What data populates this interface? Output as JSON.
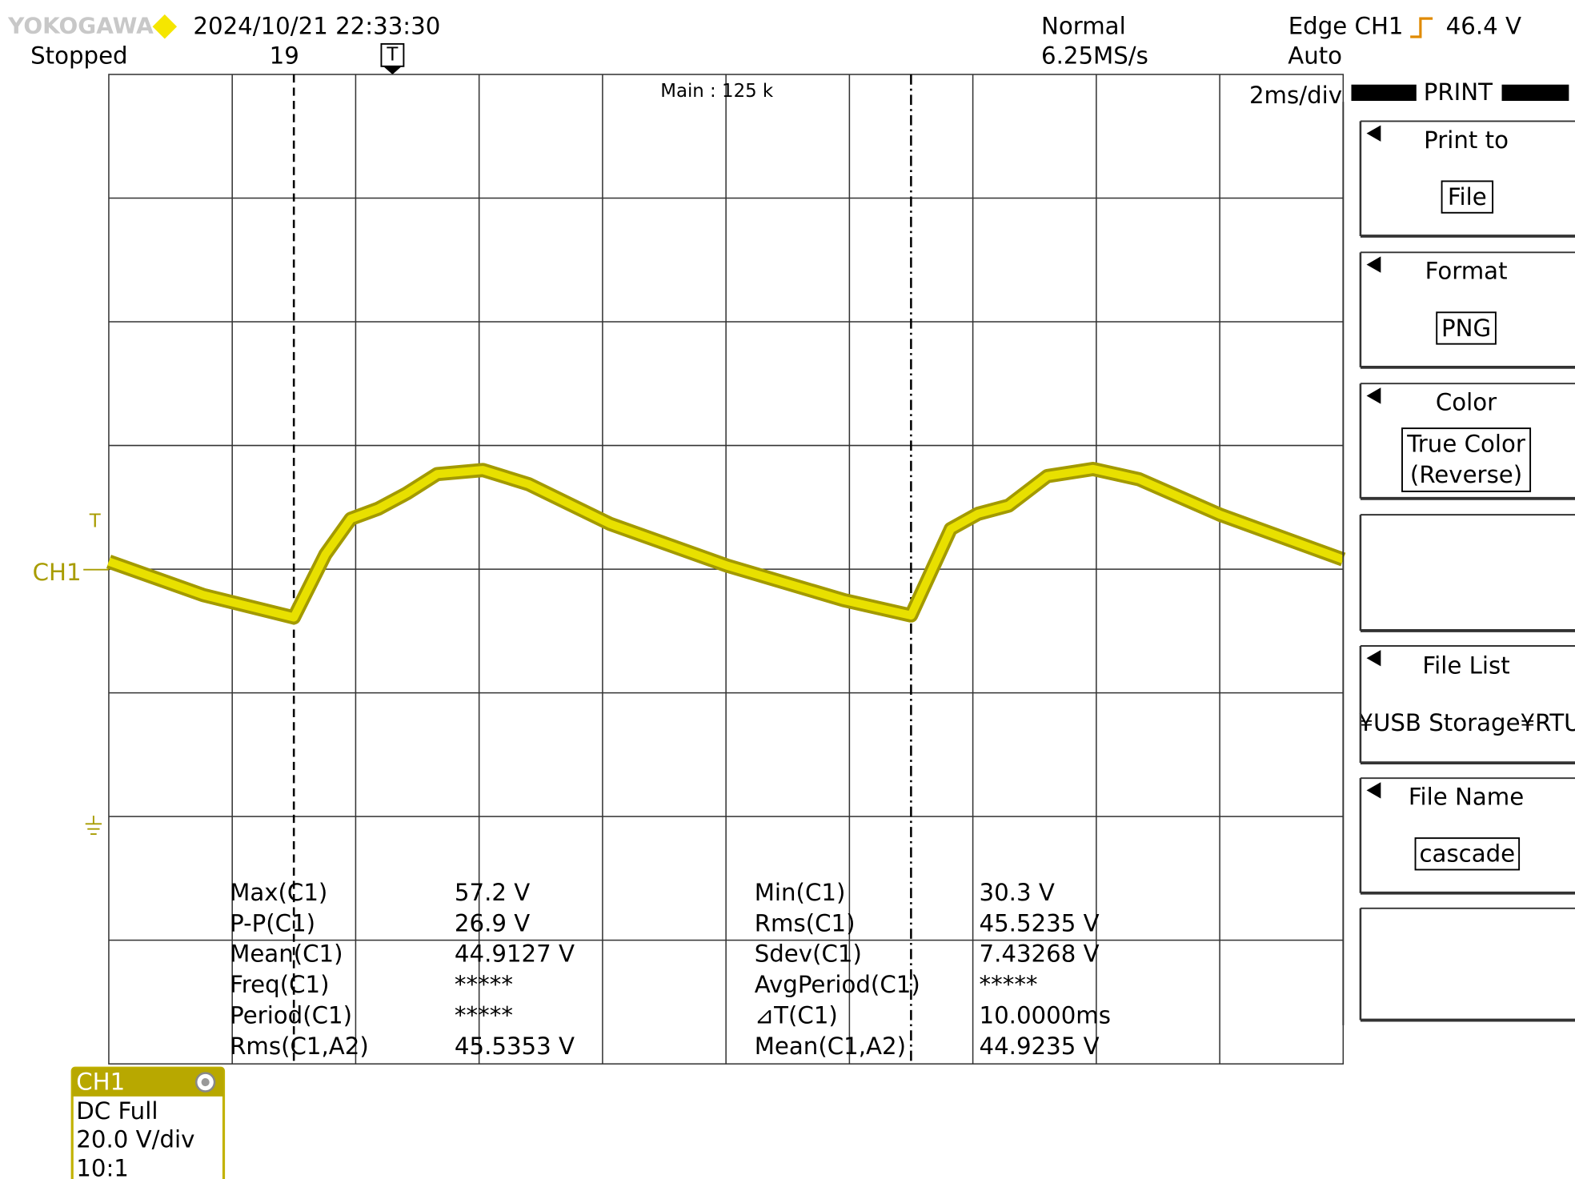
{
  "header": {
    "brand": "YOKOGAWA",
    "datetime": "2024/10/21 22:33:30",
    "status": "Stopped",
    "count": "19",
    "trigger_marker": "T",
    "acq_mode": "Normal",
    "sample_rate": "6.25MS/s",
    "trigger": "Edge CH1",
    "trigger_level": "46.4 V",
    "trigger_mode": "Auto",
    "timebase": "2ms/div",
    "record": "Main : 125 k"
  },
  "channel_label": "CH1",
  "measurements": {
    "left": [
      {
        "label": "Max(C1)",
        "value": "57.2 V"
      },
      {
        "label": "P-P(C1)",
        "value": "26.9 V"
      },
      {
        "label": "Mean(C1)",
        "value": "44.9127 V"
      },
      {
        "label": "Freq(C1)",
        "value": "*****"
      },
      {
        "label": "Period(C1)",
        "value": "*****"
      },
      {
        "label": "Rms(C1,A2)",
        "value": "45.5353 V"
      }
    ],
    "right": [
      {
        "label": "Min(C1)",
        "value": "30.3 V"
      },
      {
        "label": "Rms(C1)",
        "value": "45.5235 V"
      },
      {
        "label": "Sdev(C1)",
        "value": "7.43268 V"
      },
      {
        "label": "AvgPeriod(C1)",
        "value": "*****"
      },
      {
        "label": "⊿T(C1)",
        "value": "10.0000ms"
      },
      {
        "label": "Mean(C1,A2)",
        "value": "44.9235 V"
      }
    ]
  },
  "menu": {
    "title": "PRINT",
    "print_to": {
      "label": "Print to",
      "value": "File"
    },
    "format": {
      "label": "Format",
      "value": "PNG"
    },
    "color": {
      "label": "Color",
      "value_lines": [
        "True Color",
        "(Reverse)"
      ]
    },
    "file_list": {
      "label": "File List",
      "path": "¥USB Storage¥RTU"
    },
    "file_name": {
      "label": "File Name",
      "value": "cascade"
    }
  },
  "channel_box": {
    "name": "CH1",
    "coupling": "DC Full",
    "scale": "20.0 V/div",
    "probe": "10:1"
  }
}
